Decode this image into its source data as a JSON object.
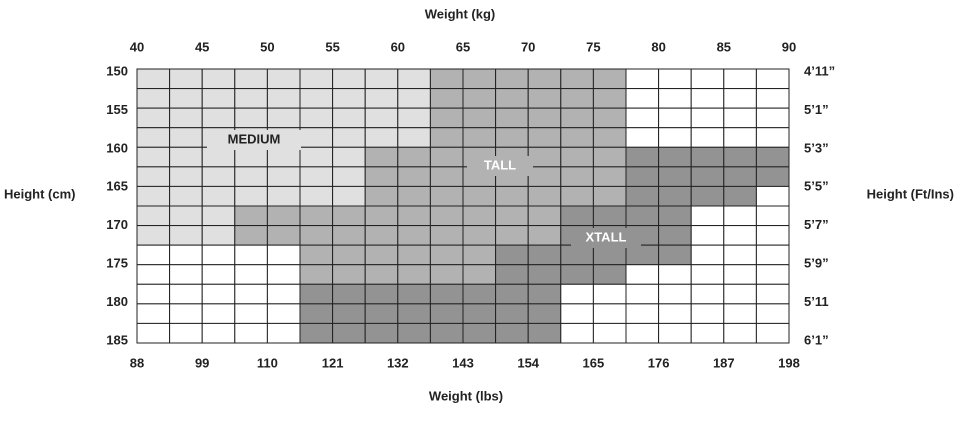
{
  "top_axis": {
    "label": "Weight (kg)",
    "ticks": [
      "40",
      "45",
      "50",
      "55",
      "60",
      "65",
      "70",
      "75",
      "80",
      "85",
      "90"
    ]
  },
  "bottom_axis": {
    "label": "Weight (lbs)",
    "ticks": [
      "88",
      "99",
      "110",
      "121",
      "132",
      "143",
      "154",
      "165",
      "176",
      "187",
      "198"
    ]
  },
  "left_axis": {
    "label": "Height (cm)",
    "ticks": [
      "150",
      "155",
      "160",
      "165",
      "170",
      "175",
      "180",
      "185"
    ]
  },
  "right_axis": {
    "label": "Height (Ft/Ins)",
    "ticks": [
      "4’11”",
      "5’1”",
      "5’3”",
      "5’5”",
      "5’7”",
      "5’9”",
      "5’11",
      "6’1”"
    ]
  },
  "zones": [
    {
      "label": "MEDIUM"
    },
    {
      "label": "TALL"
    },
    {
      "label": "XTALL"
    }
  ]
}
